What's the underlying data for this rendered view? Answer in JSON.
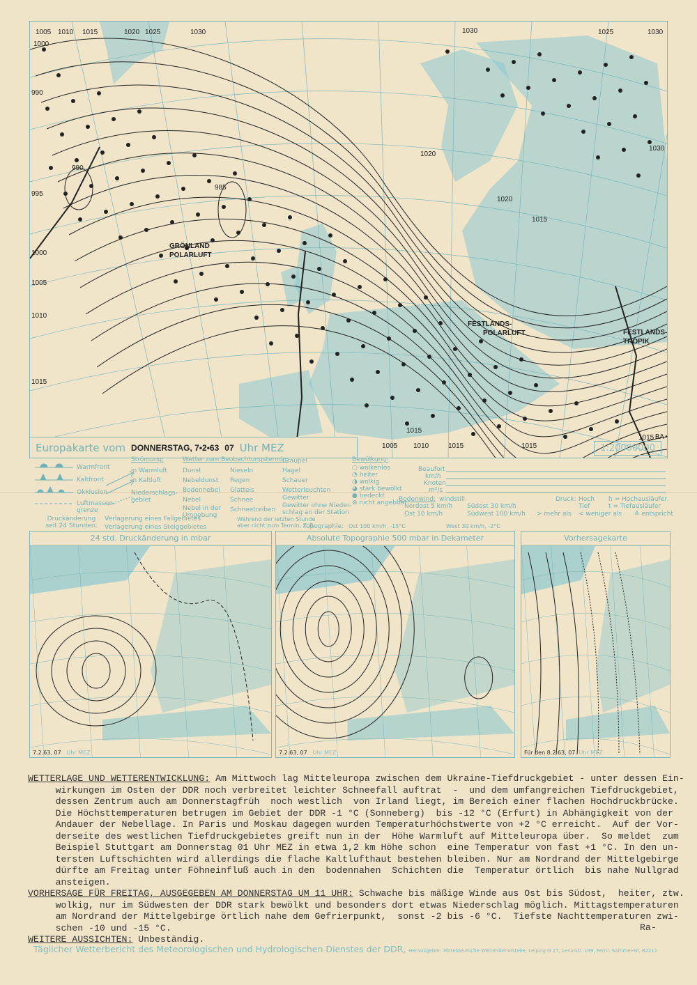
{
  "main_map": {
    "title_label": "Europakarte vom",
    "date": "DONNERSTAG, 7•2•63",
    "hour": "07",
    "hour_unit": "Uhr MEZ",
    "scale": "1:20000000",
    "author_mark": "RA•",
    "isobar_labels": [
      "1005",
      "1010",
      "1015",
      "1020",
      "1025",
      "1030",
      "1000",
      "990",
      "995",
      "1000",
      "1005",
      "1010",
      "1015",
      "990",
      "985",
      "1030",
      "1020",
      "1015",
      "1030",
      "1020",
      "1025",
      "1030",
      "1015",
      "1005",
      "1005",
      "1010",
      "1015",
      "1015",
      "1015"
    ],
    "air_mass_labels": [
      "GRÖNLAND",
      "POLARLUFT",
      "FESTLANDS-",
      "POLARLUFT",
      "FESTLANDS-",
      "TROPIK"
    ],
    "land_color": "#8cc9cf",
    "isobar_color": "#222222",
    "graticule_color": "#7cb8bd"
  },
  "legend": {
    "fronts": [
      "Warmfront",
      "Kaltfront",
      "Okklusion",
      "Luftmassen-grenze"
    ],
    "stroemung_title": "Strömung:",
    "stroemung": [
      "in Warmluft",
      "in Kaltluft",
      "Niederschlags-gebiet"
    ],
    "wetter_title": "Wetter zum Beobachtungstermin:",
    "wetter_col1": [
      "Dunst",
      "Nebeldunst",
      "Bodennebel",
      "Nebel",
      "Nebel in der Umgebung"
    ],
    "wetter_col2": [
      "Nieseln",
      "Regen",
      "Glatteis",
      "Schnee",
      "Schneetreiben"
    ],
    "wetter_col3": [
      "Graupel",
      "Hagel",
      "Schauer",
      "Wetterleuchten",
      "Gewitter",
      "Gewitter ohne Nieder-schlag an der Station"
    ],
    "last_hour_note": "Während der letzten Stunde aber nicht zum Termin, z. B.",
    "druck_label": "Druckänderung seit 24 Stunden:",
    "verlagerung": [
      "Verlagerung eines Fallgebietes",
      "Verlagerung eines Steiggebietes"
    ],
    "topographie": "Topographie:",
    "topo_example_1": "Ost 100 km/h, -15°C",
    "topo_example_2": "West 30 km/h, -2°C",
    "bewoelkung_title": "Bewölkung:",
    "bewoelkung": [
      "wolkenlos",
      "heiter",
      "wolkig",
      "stark bewölkt",
      "bedeckt",
      "nicht angebbar"
    ],
    "beaufort_rows": [
      "Beaufort",
      "km/h",
      "Knoten",
      "m²/s"
    ],
    "bodenwind_title": "Bodenwind:",
    "bodenwind": [
      "windstill",
      "Nordost   5 km/h",
      "Südost   30 km/h",
      "Ost    10 km/h",
      "Südwest 100 km/h"
    ],
    "druck_title": "Druck:",
    "druck": [
      "Hoch",
      "Tief",
      "h = Hochausläufer",
      "t = Tiefausläufer"
    ],
    "symbols": [
      "> mehr als",
      "< weniger als",
      "≙ entspricht"
    ]
  },
  "small_maps": [
    {
      "title": "24 std. Druckänderung in mbar",
      "date": "7.2.63,  07",
      "unit": "Uhr MEZ"
    },
    {
      "title": "Absolute Topographie 500 mbar in Dekameter",
      "date": "7.2.63,  07",
      "unit": "Uhr MEZ"
    },
    {
      "title": "Vorhersagekarte",
      "date": "Für den  8.2.63,  07",
      "unit": "Uhr MEZ"
    }
  ],
  "report": {
    "wetterlage_heading": "WETTERLAGE UND WETTERENTWICKLUNG:",
    "wetterlage_lines": [
      " Am Mittwoch lag Mitteleuropa zwischen dem Ukraine-Tiefdruckgebiet - unter dessen Ein-",
      "     wirkungen im Osten der DDR noch verbreitet leichter Schneefall auftrat  -  und dem umfangreichen Tiefdruckgebiet,",
      "     dessen Zentrum auch am Donnerstagfrüh  noch westlich  von Irland liegt, im Bereich einer flachen Hochdruckbrücke.",
      "     Die Höchsttemperaturen betrugen im Gebiet der DDR -1 °C (Sonneberg)  bis -12 °C (Erfurt) in Abhängigkeit von der",
      "     Andauer der Nebellage. In Paris und Moskau dagegen wurden Temperaturhöchstwerte von +2 °C erreicht.  Auf der Vor-",
      "     derseite des westlichen Tiefdruckgebietes greift nun in der  Höhe Warmluft auf Mitteleuropa über.  So meldet  zum",
      "     Beispiel Stuttgart am Donnerstag 01 Uhr MEZ in etwa 1,2 km Höhe schon  eine Temperatur von fast +1 °C. In den un-",
      "     tersten Luftschichten wird allerdings die flache Kaltlufthaut bestehen bleiben. Nur am Nordrand der Mittelgebirge",
      "     dürfte am Freitag unter Föhneinfluß auch in den  bodennahen  Schichten die  Temperatur örtlich  bis nahe Nullgrad",
      "     ansteigen."
    ],
    "vorhersage_heading": "VORHERSAGE FÜR FREITAG, AUSGEGEBEN AM DONNERSTAG UM 11 UHR:",
    "vorhersage_lines": [
      " Schwache bis mäßige Winde aus Ost bis Südost,  heiter, ztw.",
      "     wolkig, nur im Südwesten der DDR stark bewölkt und besonders dort etwas Niederschlag möglich. Mittagstemperaturen",
      "     am Nordrand der Mittelgebirge örtlich nahe dem Gefrierpunkt,  sonst -2 bis -6 °C.  Tiefste Nachttemperaturen zwi-",
      "     schen -10 und -15 °C."
    ],
    "aussichten_heading": "WEITERE AUSSICHTEN:",
    "aussichten_text": " Unbeständig.",
    "signature": "Ra-"
  },
  "footer": {
    "title": "Täglicher Wetterbericht des Meteorologischen und Hydrologischen Dienstes der DDR,",
    "publisher": "Herausgeber: Mitteldeutsche Wetterdienststelle, Leipzig O 27, Leninstr. 169, Fernr. Sammel-Nr. 84211"
  }
}
